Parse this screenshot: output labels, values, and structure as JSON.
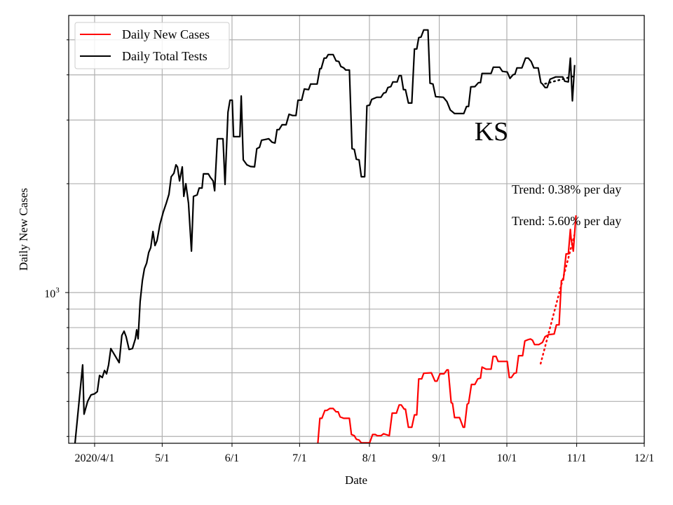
{
  "chart_data": {
    "type": "line",
    "title": "KS",
    "xlabel": "Date",
    "ylabel": "Daily New Cases",
    "yscale": "log",
    "ylim": [
      383,
      5840
    ],
    "xlim": [
      -11.5,
      244
    ],
    "x_units": "days since 2020-04-01",
    "grid": true,
    "legend_placement": "top-left",
    "x_ticks": [
      {
        "x": 0,
        "label": "2020/4/1"
      },
      {
        "x": 30,
        "label": "5/1"
      },
      {
        "x": 61,
        "label": "6/1"
      },
      {
        "x": 91,
        "label": "7/1"
      },
      {
        "x": 122,
        "label": "8/1"
      },
      {
        "x": 153,
        "label": "9/1"
      },
      {
        "x": 183,
        "label": "10/1"
      },
      {
        "x": 214,
        "label": "11/1"
      },
      {
        "x": 244,
        "label": "12/1"
      }
    ],
    "y_major_ticks": [
      {
        "v": 1000,
        "base": "10",
        "exp": "3"
      }
    ],
    "y_minor_ticks": [
      400,
      500,
      600,
      700,
      800,
      900,
      2000,
      3000,
      4000,
      5000
    ],
    "series": [
      {
        "name": "Daily New Cases",
        "color": "#ff0000",
        "points": [
          [
            96.6,
            380
          ],
          [
            99.1,
            383
          ],
          [
            100,
            449
          ],
          [
            100.9,
            449
          ],
          [
            102.2,
            472
          ],
          [
            103.1,
            472
          ],
          [
            104.4,
            478
          ],
          [
            105.9,
            478
          ],
          [
            107.2,
            468
          ],
          [
            108.1,
            468
          ],
          [
            109,
            453
          ],
          [
            110.6,
            449
          ],
          [
            113.1,
            449
          ],
          [
            114,
            405
          ],
          [
            115.3,
            402
          ],
          [
            116.2,
            393
          ],
          [
            117.4,
            391
          ],
          [
            118.4,
            384
          ],
          [
            122.1,
            384
          ],
          [
            123.4,
            405
          ],
          [
            124.6,
            405
          ],
          [
            125.5,
            402
          ],
          [
            127.1,
            402
          ],
          [
            128.3,
            407
          ],
          [
            129.3,
            405
          ],
          [
            130.8,
            402
          ],
          [
            132.1,
            464
          ],
          [
            134,
            464
          ],
          [
            135.2,
            489
          ],
          [
            136.1,
            489
          ],
          [
            137.4,
            476
          ],
          [
            138,
            476
          ],
          [
            139.3,
            424
          ],
          [
            140.8,
            424
          ],
          [
            142,
            459
          ],
          [
            143,
            459
          ],
          [
            143.9,
            577
          ],
          [
            145.2,
            577
          ],
          [
            146.1,
            598
          ],
          [
            149.5,
            600
          ],
          [
            151.1,
            569
          ],
          [
            152,
            569
          ],
          [
            153.3,
            596
          ],
          [
            155.1,
            596
          ],
          [
            156.4,
            611
          ],
          [
            157,
            611
          ],
          [
            158.3,
            496
          ],
          [
            158.9,
            494
          ],
          [
            159.8,
            451
          ],
          [
            162,
            451
          ],
          [
            163.6,
            424
          ],
          [
            164.2,
            424
          ],
          [
            165.4,
            491
          ],
          [
            166,
            494
          ],
          [
            167.3,
            557
          ],
          [
            168.8,
            557
          ],
          [
            170.1,
            577
          ],
          [
            171.3,
            580
          ],
          [
            172,
            622
          ],
          [
            173.8,
            614
          ],
          [
            176,
            614
          ],
          [
            176.9,
            666
          ],
          [
            178.2,
            666
          ],
          [
            179.1,
            645
          ],
          [
            183.2,
            645
          ],
          [
            184.1,
            582
          ],
          [
            185,
            582
          ],
          [
            186.3,
            598
          ],
          [
            187.2,
            600
          ],
          [
            188.2,
            669
          ],
          [
            190,
            669
          ],
          [
            191,
            735
          ],
          [
            192.5,
            741
          ],
          [
            193.5,
            744
          ],
          [
            194.4,
            738
          ],
          [
            195.3,
            718
          ],
          [
            197.2,
            718
          ],
          [
            198.8,
            728
          ],
          [
            200,
            755
          ],
          [
            201.6,
            765
          ],
          [
            204,
            768
          ],
          [
            205,
            814
          ],
          [
            206.2,
            814
          ],
          [
            207.2,
            1079
          ],
          [
            208.1,
            1084
          ],
          [
            209.3,
            1279
          ],
          [
            210.3,
            1279
          ],
          [
            211.2,
            1495
          ],
          [
            211.5,
            1411
          ],
          [
            212.5,
            1302
          ],
          [
            213.7,
            1635
          ]
        ]
      },
      {
        "name": "Daily Total Tests",
        "color": "#000000",
        "points": [
          [
            -8.7,
            383
          ],
          [
            -5.3,
            631
          ],
          [
            -4.7,
            461
          ],
          [
            -3.1,
            500
          ],
          [
            -1.6,
            521
          ],
          [
            0,
            525
          ],
          [
            1.2,
            532
          ],
          [
            2.2,
            590
          ],
          [
            3.4,
            582
          ],
          [
            4.4,
            609
          ],
          [
            5.3,
            596
          ],
          [
            6.2,
            631
          ],
          [
            7.2,
            700
          ],
          [
            8.7,
            675
          ],
          [
            10.9,
            640
          ],
          [
            12.1,
            761
          ],
          [
            13.1,
            782
          ],
          [
            14,
            755
          ],
          [
            15.3,
            696
          ],
          [
            16.8,
            700
          ],
          [
            18.1,
            745
          ],
          [
            18.7,
            789
          ],
          [
            19.3,
            745
          ],
          [
            20.2,
            944
          ],
          [
            21.2,
            1079
          ],
          [
            22.1,
            1164
          ],
          [
            23.1,
            1207
          ],
          [
            24,
            1290
          ],
          [
            24.9,
            1331
          ],
          [
            25.9,
            1475
          ],
          [
            26.8,
            1349
          ],
          [
            27.7,
            1392
          ],
          [
            29,
            1543
          ],
          [
            30.5,
            1672
          ],
          [
            31.8,
            1765
          ],
          [
            33,
            1870
          ],
          [
            34,
            2091
          ],
          [
            35.2,
            2138
          ],
          [
            36.1,
            2256
          ],
          [
            36.8,
            2225
          ],
          [
            37.7,
            2036
          ],
          [
            38.9,
            2227
          ],
          [
            39.6,
            1845
          ],
          [
            40.5,
            2000
          ],
          [
            41.7,
            1765
          ],
          [
            43,
            1302
          ],
          [
            43.9,
            1845
          ],
          [
            45.5,
            1862
          ],
          [
            46.4,
            1946
          ],
          [
            47.7,
            1946
          ],
          [
            48.3,
            2129
          ],
          [
            50.5,
            2129
          ],
          [
            51.4,
            2082
          ],
          [
            52.6,
            2036
          ],
          [
            53.3,
            1912
          ],
          [
            54.5,
            2663
          ],
          [
            57,
            2663
          ],
          [
            57.9,
            1991
          ],
          [
            59.2,
            3155
          ],
          [
            60.1,
            3405
          ],
          [
            61.1,
            3405
          ],
          [
            61.7,
            2699
          ],
          [
            64.5,
            2699
          ],
          [
            65.1,
            3498
          ],
          [
            66,
            2328
          ],
          [
            67.6,
            2256
          ],
          [
            69.2,
            2232
          ],
          [
            71,
            2227
          ],
          [
            72,
            2500
          ],
          [
            73.2,
            2522
          ],
          [
            74.1,
            2638
          ],
          [
            77.3,
            2663
          ],
          [
            78.8,
            2604
          ],
          [
            80.1,
            2592
          ],
          [
            81,
            2822
          ],
          [
            81.9,
            2822
          ],
          [
            83.2,
            2911
          ],
          [
            85,
            2911
          ],
          [
            86.3,
            3113
          ],
          [
            87.9,
            3088
          ],
          [
            89.4,
            3088
          ],
          [
            90.3,
            3405
          ],
          [
            91.9,
            3405
          ],
          [
            93.1,
            3656
          ],
          [
            95,
            3640
          ],
          [
            95.9,
            3773
          ],
          [
            98.8,
            3773
          ],
          [
            100,
            4162
          ],
          [
            100.6,
            4162
          ],
          [
            101.9,
            4452
          ],
          [
            102.8,
            4452
          ],
          [
            103.7,
            4552
          ],
          [
            105.9,
            4552
          ],
          [
            107.2,
            4373
          ],
          [
            108.4,
            4355
          ],
          [
            109.3,
            4219
          ],
          [
            110.6,
            4181
          ],
          [
            111.5,
            4126
          ],
          [
            113.1,
            4126
          ],
          [
            114.3,
            2500
          ],
          [
            115.3,
            2489
          ],
          [
            116.2,
            2338
          ],
          [
            117.4,
            2328
          ],
          [
            118.4,
            2091
          ],
          [
            119.9,
            2091
          ],
          [
            120.9,
            3285
          ],
          [
            122.1,
            3300
          ],
          [
            123,
            3420
          ],
          [
            125.2,
            3467
          ],
          [
            127.1,
            3467
          ],
          [
            128.3,
            3560
          ],
          [
            129.3,
            3576
          ],
          [
            130.2,
            3690
          ],
          [
            131.5,
            3712
          ],
          [
            132.4,
            3824
          ],
          [
            134.3,
            3824
          ],
          [
            135.2,
            3981
          ],
          [
            136.1,
            3981
          ],
          [
            137.1,
            3640
          ],
          [
            138,
            3640
          ],
          [
            139.3,
            3343
          ],
          [
            140.8,
            3343
          ],
          [
            142,
            4718
          ],
          [
            143,
            4718
          ],
          [
            143.9,
            5070
          ],
          [
            144.9,
            5090
          ],
          [
            146.1,
            5324
          ],
          [
            148,
            5324
          ],
          [
            148.9,
            3791
          ],
          [
            150.2,
            3773
          ],
          [
            151.4,
            3482
          ],
          [
            154.8,
            3467
          ],
          [
            156.4,
            3375
          ],
          [
            157.9,
            3198
          ],
          [
            159.8,
            3126
          ],
          [
            163.9,
            3126
          ],
          [
            165.1,
            3271
          ],
          [
            166,
            3271
          ],
          [
            167,
            3706
          ],
          [
            168.8,
            3712
          ],
          [
            170.4,
            3807
          ],
          [
            171.3,
            3807
          ],
          [
            172,
            4036
          ],
          [
            176,
            4036
          ],
          [
            177,
            4200
          ],
          [
            179.8,
            4200
          ],
          [
            181,
            4090
          ],
          [
            183.2,
            4073
          ],
          [
            184.4,
            3910
          ],
          [
            185.7,
            4000
          ],
          [
            186.6,
            4018
          ],
          [
            187.5,
            4181
          ],
          [
            189.7,
            4181
          ],
          [
            191.3,
            4452
          ],
          [
            192.5,
            4452
          ],
          [
            193.8,
            4355
          ],
          [
            195,
            4181
          ],
          [
            196.9,
            4181
          ],
          [
            198.1,
            3807
          ],
          [
            198.8,
            3773
          ],
          [
            200,
            3690
          ],
          [
            200.9,
            3690
          ],
          [
            202.2,
            3892
          ],
          [
            204.7,
            3947
          ],
          [
            207.8,
            3947
          ],
          [
            208.7,
            3841
          ],
          [
            210.3,
            3824
          ],
          [
            211.2,
            4452
          ],
          [
            212.1,
            3390
          ],
          [
            213.1,
            4258
          ]
        ]
      }
    ],
    "trends": [
      {
        "series": "Daily Total Tests",
        "color": "#000000",
        "label": "Trend: 0.38% per day",
        "points": [
          [
            200,
            3780
          ],
          [
            213,
            3970
          ]
        ]
      },
      {
        "series": "Daily New Cases",
        "color": "#ff0000",
        "label": "Trend: 5.60% per day",
        "points": [
          [
            198,
            636
          ],
          [
            213,
            1444
          ]
        ]
      }
    ]
  }
}
